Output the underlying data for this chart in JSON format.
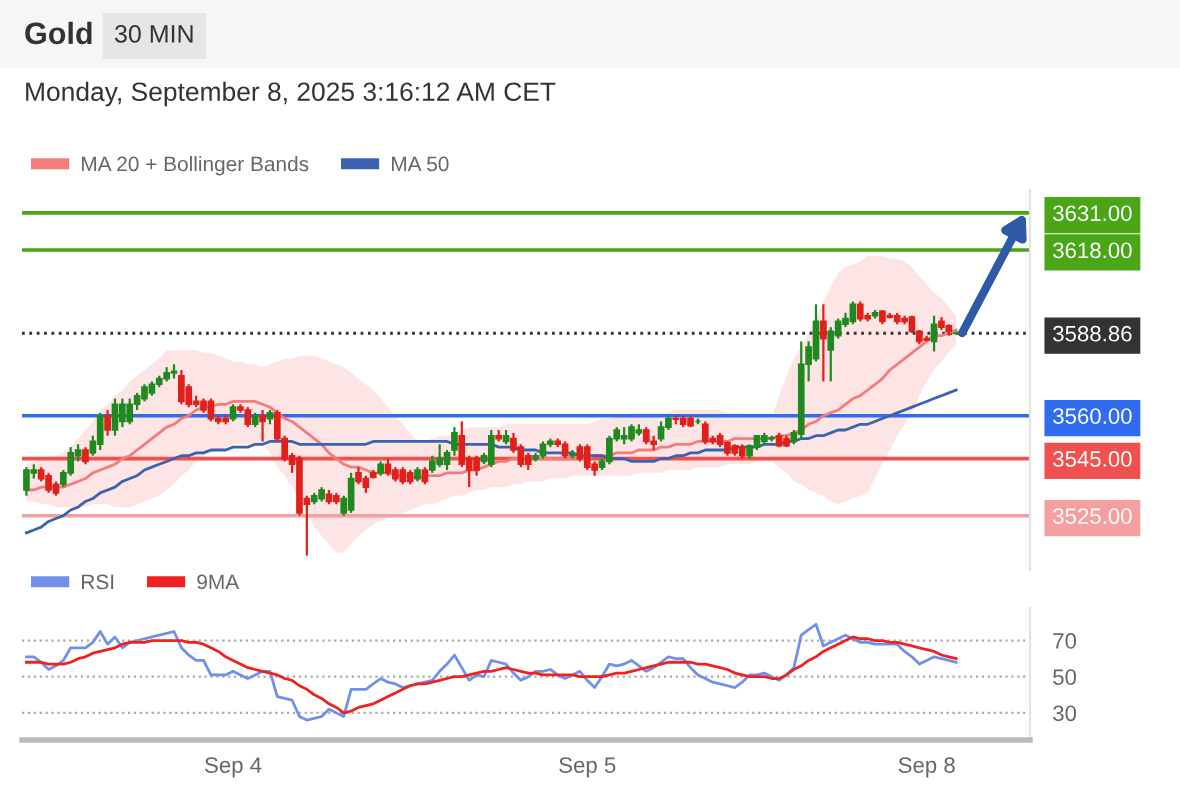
{
  "chart_data": [
    {
      "type": "candlestick",
      "title": "Gold",
      "subtitle": "Monday, September 8, 2025 3:16:12 AM CET",
      "annotations": [
        "30 MIN"
      ],
      "categories": [
        null,
        null,
        null,
        null,
        null,
        null,
        null,
        null,
        null,
        null,
        null,
        null,
        null,
        null,
        null,
        null,
        null,
        null,
        null,
        null,
        null,
        null,
        null,
        null,
        null,
        null,
        null,
        null,
        null,
        null,
        null,
        null,
        null,
        null,
        null,
        null,
        null,
        null,
        null,
        null,
        null,
        null,
        null,
        null,
        null,
        null,
        null,
        null,
        null,
        null,
        null,
        null,
        null,
        null,
        null,
        null,
        null,
        null,
        null,
        null,
        null,
        null,
        null,
        null,
        null,
        null,
        null,
        null,
        null,
        null,
        null,
        null,
        null,
        null,
        null,
        null,
        null,
        null,
        null,
        null,
        null,
        null,
        null,
        null,
        null,
        null,
        null,
        null,
        null,
        null,
        null,
        null,
        null,
        null,
        null,
        null,
        null,
        null,
        null,
        null,
        null,
        null,
        null,
        null,
        null,
        null,
        null,
        null,
        null,
        null,
        null,
        null,
        null,
        null,
        null,
        null,
        null,
        null,
        null,
        null,
        null,
        null,
        null,
        null,
        null,
        null,
        null
      ],
      "ohlc": [
        [
          3534,
          3542,
          3532,
          3541
        ],
        [
          3540,
          3543,
          3538,
          3541
        ],
        [
          3541,
          3542,
          3537,
          3538
        ],
        [
          3539,
          3540,
          3533,
          3534
        ],
        [
          3536,
          3537,
          3532,
          3533
        ],
        [
          3536,
          3541,
          3535,
          3540
        ],
        [
          3540,
          3549,
          3539,
          3547
        ],
        [
          3546,
          3550,
          3544,
          3548
        ],
        [
          3548,
          3549,
          3543,
          3544
        ],
        [
          3547,
          3553,
          3546,
          3551
        ],
        [
          3550,
          3561,
          3548,
          3560
        ],
        [
          3560,
          3562,
          3553,
          3555
        ],
        [
          3555,
          3566,
          3553,
          3564
        ],
        [
          3558,
          3566,
          3556,
          3564
        ],
        [
          3558,
          3566,
          3557,
          3564
        ],
        [
          3564,
          3568,
          3562,
          3567
        ],
        [
          3566,
          3571,
          3565,
          3570
        ],
        [
          3568,
          3572,
          3567,
          3571
        ],
        [
          3571,
          3574,
          3570,
          3573
        ],
        [
          3573,
          3577,
          3572,
          3575
        ],
        [
          3575,
          3578,
          3573,
          3575.5
        ],
        [
          3574,
          3576,
          3564,
          3565
        ],
        [
          3570,
          3571,
          3563,
          3564
        ],
        [
          3565,
          3567,
          3563,
          3564
        ],
        [
          3565,
          3566,
          3561,
          3562
        ],
        [
          3565,
          3566,
          3558,
          3559
        ],
        [
          3559,
          3560,
          3557,
          3558
        ],
        [
          3559,
          3560,
          3557,
          3558
        ],
        [
          3559,
          3564,
          3558,
          3563
        ],
        [
          3563,
          3564,
          3561,
          3562
        ],
        [
          3562,
          3563,
          3556,
          3557
        ],
        [
          3557,
          3561,
          3556,
          3560
        ],
        [
          3560,
          3562,
          3551,
          3558
        ],
        [
          3559,
          3562,
          3557,
          3561
        ],
        [
          3561,
          3562,
          3551,
          3552
        ],
        [
          3552,
          3553,
          3544,
          3545
        ],
        [
          3546,
          3547,
          3540,
          3543
        ],
        [
          3545,
          3546,
          3525,
          3526
        ],
        [
          3531,
          3532,
          3511,
          3529
        ],
        [
          3530,
          3533,
          3529,
          3532
        ],
        [
          3531,
          3535,
          3530,
          3534
        ],
        [
          3532.5,
          3534,
          3529,
          3530
        ],
        [
          3532,
          3533,
          3529,
          3530
        ],
        [
          3526,
          3532,
          3525,
          3531
        ],
        [
          3527,
          3540,
          3526,
          3538
        ],
        [
          3540,
          3542,
          3536,
          3537
        ],
        [
          3538,
          3539,
          3533,
          3535
        ],
        [
          3540,
          3541,
          3538,
          3538.5
        ],
        [
          3540,
          3544,
          3539,
          3543
        ],
        [
          3543,
          3545,
          3539,
          3540
        ],
        [
          3541,
          3542,
          3537,
          3538
        ],
        [
          3541,
          3542,
          3536,
          3537
        ],
        [
          3540,
          3541,
          3536,
          3537
        ],
        [
          3538,
          3542,
          3537,
          3541
        ],
        [
          3541,
          3542,
          3536,
          3537
        ],
        [
          3541,
          3546,
          3540,
          3544
        ],
        [
          3543,
          3550,
          3542,
          3545
        ],
        [
          3543,
          3548,
          3541,
          3547
        ],
        [
          3548,
          3556,
          3546,
          3554
        ],
        [
          3553,
          3558,
          3542,
          3543
        ],
        [
          3545,
          3546,
          3535,
          3541
        ],
        [
          3545,
          3546,
          3539,
          3541
        ],
        [
          3544,
          3547,
          3543,
          3546
        ],
        [
          3543,
          3555,
          3542,
          3553
        ],
        [
          3553,
          3555,
          3551,
          3552
        ],
        [
          3551,
          3555,
          3550,
          3553
        ],
        [
          3552,
          3554,
          3547,
          3548
        ],
        [
          3549,
          3550,
          3542,
          3543
        ],
        [
          3546,
          3547,
          3541,
          3543
        ],
        [
          3545,
          3547,
          3544,
          3546
        ],
        [
          3546,
          3551,
          3545,
          3550
        ],
        [
          3550,
          3552,
          3549,
          3551
        ],
        [
          3551,
          3552,
          3549,
          3550
        ],
        [
          3550,
          3551,
          3545,
          3546
        ],
        [
          3546,
          3548,
          3545,
          3546.5
        ],
        [
          3549,
          3550,
          3544,
          3545
        ],
        [
          3549,
          3550,
          3541,
          3542
        ],
        [
          3543,
          3544,
          3539,
          3541
        ],
        [
          3542,
          3545,
          3541,
          3544
        ],
        [
          3544,
          3553,
          3543,
          3552
        ],
        [
          3552,
          3556,
          3551,
          3555
        ],
        [
          3552,
          3556,
          3550,
          3553
        ],
        [
          3552,
          3557,
          3551,
          3556
        ],
        [
          3554,
          3557,
          3553,
          3555
        ],
        [
          3555,
          3556,
          3550,
          3551
        ],
        [
          3551,
          3553,
          3548,
          3550
        ],
        [
          3552,
          3558,
          3551,
          3556
        ],
        [
          3556,
          3560,
          3555,
          3559
        ],
        [
          3559,
          3560,
          3557,
          3558.8
        ],
        [
          3559,
          3560,
          3556,
          3557
        ],
        [
          3559,
          3560,
          3556,
          3556.5
        ],
        [
          3558,
          3559,
          3557,
          3558
        ],
        [
          3557,
          3558,
          3550,
          3551
        ],
        [
          3552,
          3553,
          3550,
          3551
        ],
        [
          3553,
          3554,
          3549,
          3550
        ],
        [
          3550.5,
          3551,
          3546,
          3547
        ],
        [
          3549.5,
          3550,
          3546,
          3547
        ],
        [
          3549,
          3550,
          3545,
          3546
        ],
        [
          3546,
          3550,
          3545,
          3549.5
        ],
        [
          3549,
          3553,
          3548,
          3553
        ],
        [
          3551,
          3554,
          3550,
          3553
        ],
        [
          3552,
          3553,
          3551,
          3552.3
        ],
        [
          3553,
          3554,
          3549,
          3549.5
        ],
        [
          3552,
          3553,
          3549,
          3549.5
        ],
        [
          3551,
          3555,
          3550,
          3554
        ],
        [
          3553.5,
          3586,
          3552,
          3578
        ],
        [
          3578,
          3586,
          3572,
          3584
        ],
        [
          3580,
          3599,
          3579,
          3593
        ],
        [
          3593,
          3599,
          3572,
          3587
        ],
        [
          3583,
          3591,
          3572,
          3589.5
        ],
        [
          3588,
          3594,
          3587,
          3593
        ],
        [
          3592,
          3596,
          3591,
          3594
        ],
        [
          3593,
          3600,
          3592,
          3599
        ],
        [
          3599,
          3600,
          3593,
          3594
        ],
        [
          3595,
          3596,
          3593,
          3594
        ],
        [
          3595,
          3597,
          3594,
          3596
        ],
        [
          3596.5,
          3597,
          3592,
          3593
        ],
        [
          3595,
          3596,
          3594,
          3594.5
        ],
        [
          3595,
          3596,
          3592,
          3593
        ],
        [
          3594,
          3595,
          3592,
          3593
        ],
        [
          3594.5,
          3595,
          3589,
          3589.5
        ],
        [
          3589.5,
          3590,
          3585,
          3586
        ],
        [
          3587,
          3588,
          3586,
          3586.5
        ],
        [
          3586,
          3595,
          3582.5,
          3592
        ],
        [
          3593,
          3594.5,
          3590,
          3591
        ],
        [
          3591.5,
          3592,
          3588,
          3589.5
        ],
        [
          3588.8,
          3589.5,
          3588.4,
          3588.9
        ]
      ],
      "series": [
        {
          "name": "MA 20 + Bollinger Bands",
          "type": "line",
          "color": "#f47c7c",
          "values": [
            3534,
            3534,
            3535,
            3535,
            3535,
            3535,
            3536,
            3537,
            3538,
            3540,
            3541,
            3542,
            3543,
            3545,
            3546,
            3548,
            3550,
            3552,
            3554,
            3556,
            3557,
            3559,
            3560,
            3562,
            3563,
            3563,
            3564,
            3564,
            3565,
            3565,
            3565,
            3565,
            3564,
            3563,
            3561,
            3559,
            3558,
            3556,
            3554,
            3552,
            3550,
            3547,
            3545,
            3543,
            3542,
            3542,
            3541,
            3540,
            3540,
            3540,
            3539,
            3539,
            3539,
            3538,
            3539,
            3539,
            3539,
            3540,
            3540,
            3540,
            3541,
            3541,
            3542,
            3543,
            3544,
            3544,
            3545,
            3545,
            3545,
            3545,
            3545,
            3545,
            3545,
            3545,
            3545,
            3545,
            3545,
            3546,
            3546,
            3546,
            3547,
            3547,
            3547,
            3548,
            3548,
            3548,
            3549,
            3549,
            3550,
            3550,
            3550,
            3551,
            3551,
            3551,
            3551,
            3551,
            3552,
            3552,
            3552,
            3552,
            3552,
            3552,
            3553,
            3553,
            3554,
            3555,
            3557,
            3558,
            3560,
            3561,
            3562,
            3564,
            3566,
            3567,
            3569,
            3571,
            3573,
            3576,
            3578,
            3580,
            3582,
            3584,
            3586,
            3588,
            3588,
            3589,
            3590
          ],
          "upper": [
            3543,
            3544,
            3545,
            3545,
            3546,
            3547,
            3549,
            3552,
            3555,
            3558,
            3562,
            3564,
            3567,
            3569,
            3572,
            3574,
            3576,
            3578,
            3580,
            3583,
            3583,
            3583,
            3583,
            3583,
            3582,
            3582,
            3581,
            3580,
            3579,
            3579,
            3578,
            3578,
            3577,
            3578,
            3579,
            3580,
            3580,
            3581,
            3581,
            3581,
            3580,
            3579,
            3578,
            3577,
            3575,
            3573,
            3571,
            3569,
            3566,
            3563,
            3560,
            3557,
            3554,
            3551,
            3551,
            3552,
            3553,
            3553,
            3554,
            3555,
            3556,
            3556,
            3556,
            3556,
            3556,
            3557,
            3557,
            3557,
            3557,
            3557,
            3557,
            3557,
            3557,
            3557,
            3557,
            3557,
            3557,
            3558,
            3559,
            3559,
            3560,
            3560,
            3561,
            3561,
            3561,
            3561,
            3561,
            3561,
            3562,
            3562,
            3562,
            3562,
            3562,
            3562,
            3562,
            3561,
            3561,
            3561,
            3560,
            3560,
            3560,
            3559,
            3567,
            3574,
            3580,
            3584,
            3589,
            3594,
            3600,
            3605,
            3610,
            3612,
            3613,
            3614,
            3616,
            3616,
            3616,
            3615,
            3615,
            3614,
            3612,
            3609,
            3606,
            3603,
            3601,
            3598,
            3595
          ],
          "lower": [
            3530,
            3530,
            3529,
            3529,
            3528,
            3528,
            3528,
            3528,
            3528,
            3529,
            3529,
            3529,
            3528,
            3528,
            3528,
            3529,
            3530,
            3531,
            3532,
            3534,
            3536,
            3539,
            3541,
            3544,
            3546,
            3547,
            3548,
            3549,
            3550,
            3550,
            3550,
            3550,
            3550,
            3547,
            3542,
            3539,
            3535,
            3531,
            3526,
            3521,
            3518,
            3515,
            3512,
            3512,
            3515,
            3518,
            3520,
            3522,
            3523,
            3524,
            3525,
            3526,
            3527,
            3528,
            3529,
            3529,
            3530,
            3531,
            3532,
            3532,
            3533,
            3534,
            3534,
            3535,
            3535,
            3535,
            3536,
            3536,
            3537,
            3537,
            3537,
            3538,
            3538,
            3538,
            3539,
            3539,
            3539,
            3539,
            3539,
            3539,
            3539,
            3539,
            3539,
            3540,
            3540,
            3540,
            3540,
            3541,
            3541,
            3541,
            3541,
            3542,
            3542,
            3542,
            3542,
            3543,
            3543,
            3543,
            3543,
            3544,
            3544,
            3544,
            3542,
            3540,
            3537,
            3536,
            3534,
            3533,
            3532,
            3530,
            3529,
            3530,
            3531,
            3532,
            3533,
            3538,
            3543,
            3548,
            3553,
            3557,
            3561,
            3567,
            3572,
            3576,
            3579,
            3582,
            3585
          ]
        },
        {
          "name": "MA 50",
          "type": "line",
          "color": "#3a62b0",
          "values": [
            3519,
            3520,
            3521,
            3523,
            3524,
            3525,
            3527,
            3528,
            3530,
            3531,
            3533,
            3534,
            3535,
            3537,
            3538,
            3539,
            3541,
            3542,
            3543,
            3544,
            3545,
            3546,
            3546,
            3547,
            3547,
            3548,
            3548,
            3548,
            3549,
            3549,
            3549,
            3550,
            3550,
            3551,
            3551,
            3551,
            3551,
            3550,
            3550,
            3550,
            3550,
            3550,
            3550,
            3550,
            3550,
            3550,
            3550,
            3551,
            3551,
            3551,
            3551,
            3551,
            3551,
            3551,
            3551,
            3551,
            3551,
            3551,
            3550,
            3550,
            3550,
            3550,
            3550,
            3550,
            3549,
            3549,
            3549,
            3548,
            3548,
            3548,
            3547,
            3547,
            3547,
            3547,
            3547,
            3546,
            3546,
            3546,
            3546,
            3545,
            3545,
            3545,
            3544,
            3544,
            3544,
            3544,
            3545,
            3545,
            3546,
            3546,
            3547,
            3547,
            3548,
            3548,
            3548,
            3548,
            3549,
            3549,
            3549,
            3549,
            3550,
            3550,
            3550,
            3551,
            3551,
            3552,
            3552,
            3553,
            3553,
            3554,
            3555,
            3555,
            3556,
            3557,
            3557,
            3558,
            3559,
            3560,
            3561,
            3562,
            3563,
            3564,
            3565,
            3566,
            3567,
            3568,
            3569
          ]
        }
      ],
      "ref_lines": [
        {
          "axis": "y",
          "value": 3631,
          "color": "#4aa517"
        },
        {
          "axis": "y",
          "value": 3618,
          "color": "#4aa517"
        },
        {
          "axis": "y",
          "value": 3588.86,
          "color": "#333333",
          "line_style": "dotted"
        },
        {
          "axis": "y",
          "value": 3560,
          "color": "#2f6cf0"
        },
        {
          "axis": "y",
          "value": 3545,
          "color": "#f05050"
        },
        {
          "axis": "y",
          "value": 3525,
          "color": "#f4a0a0"
        }
      ],
      "yticks": [
        {
          "value": 3525,
          "label": "3525.00"
        },
        {
          "value": 3545,
          "label": "3545.00"
        },
        {
          "value": 3560,
          "label": "3560.00"
        },
        {
          "value": 3588.86,
          "label": "3588.86"
        },
        {
          "value": 3618,
          "label": "3618.00"
        },
        {
          "value": 3631,
          "label": "3631.00"
        }
      ],
      "ylim": [
        3506,
        3639
      ],
      "tick_labels": "y",
      "legend": "top left"
    },
    {
      "type": "line",
      "categories": [
        null,
        null,
        null,
        null,
        null,
        null,
        null,
        null,
        null,
        null,
        null,
        null,
        null,
        null,
        null,
        null,
        null,
        null,
        null,
        null,
        null,
        null,
        null,
        null,
        null,
        null,
        null,
        null,
        "Sep 4",
        null,
        null,
        null,
        null,
        null,
        null,
        null,
        null,
        null,
        null,
        null,
        null,
        null,
        null,
        null,
        null,
        null,
        null,
        null,
        null,
        null,
        null,
        null,
        null,
        null,
        null,
        null,
        null,
        null,
        null,
        null,
        null,
        null,
        null,
        null,
        null,
        null,
        null,
        null,
        null,
        null,
        null,
        null,
        null,
        null,
        null,
        null,
        "Sep 5",
        null,
        null,
        null,
        null,
        null,
        null,
        null,
        null,
        null,
        null,
        null,
        null,
        null,
        null,
        null,
        null,
        null,
        null,
        null,
        null,
        null,
        null,
        null,
        null,
        null,
        null,
        null,
        null,
        null,
        null,
        null,
        null,
        null,
        null,
        null,
        null,
        null,
        null,
        null,
        null,
        null,
        null,
        null,
        null,
        null,
        "Sep 8",
        null,
        null,
        null,
        null
      ],
      "series": [
        {
          "name": "RSI",
          "color": "#7090ea",
          "values": [
            61,
            61,
            58,
            54,
            56,
            59,
            66,
            66,
            66,
            69,
            75,
            68,
            72,
            66,
            69,
            70,
            71,
            72,
            73,
            74,
            75,
            66,
            62,
            59,
            59,
            51,
            51,
            51,
            53,
            51,
            49,
            51,
            53,
            53,
            39,
            38,
            37,
            28,
            26,
            27,
            28,
            32,
            30,
            28,
            43,
            43,
            43,
            46,
            49,
            47,
            46,
            44,
            45,
            46,
            47,
            48,
            53,
            57,
            62,
            55,
            48,
            51,
            50,
            59,
            58,
            57,
            52,
            48,
            50,
            53,
            53,
            54,
            51,
            49,
            51,
            53,
            48,
            44,
            50,
            57,
            56,
            57,
            59,
            56,
            53,
            55,
            58,
            61,
            60,
            60,
            55,
            51,
            49,
            47,
            46,
            45,
            44,
            47,
            51,
            51,
            52,
            50,
            48,
            51,
            55,
            73,
            76,
            79,
            67,
            69,
            71,
            73,
            71,
            69,
            69,
            68,
            68,
            68,
            68,
            64,
            61,
            57,
            59,
            61,
            60,
            59,
            58
          ]
        },
        {
          "name": "9MA",
          "color": "#ee2222",
          "values": [
            58,
            58,
            58,
            57,
            57,
            57,
            58,
            60,
            61,
            63,
            64,
            65,
            66,
            68,
            69,
            69,
            69,
            70,
            70,
            70,
            70,
            70,
            69,
            69,
            68,
            66,
            64,
            61,
            59,
            57,
            55,
            54,
            53,
            52,
            51,
            49,
            48,
            45,
            43,
            40,
            38,
            35,
            33,
            30,
            31,
            33,
            34,
            35,
            37,
            39,
            41,
            43,
            45,
            46,
            46,
            47,
            48,
            49,
            50,
            50,
            51,
            52,
            53,
            53,
            54,
            55,
            54,
            53,
            52,
            52,
            51,
            51,
            51,
            51,
            51,
            50,
            50,
            50,
            50,
            51,
            52,
            52,
            53,
            54,
            55,
            56,
            57,
            58,
            58,
            58,
            58,
            57,
            57,
            56,
            55,
            54,
            52,
            51,
            50,
            50,
            50,
            49,
            49,
            51,
            54,
            56,
            59,
            61,
            64,
            66,
            68,
            70,
            72,
            71,
            71,
            70,
            70,
            69,
            69,
            68,
            67,
            66,
            65,
            64,
            62,
            61,
            60
          ]
        }
      ],
      "ylim": [
        15,
        88
      ],
      "yticks": [
        30,
        50,
        70
      ],
      "grid": "y",
      "legend": "top left"
    }
  ]
}
